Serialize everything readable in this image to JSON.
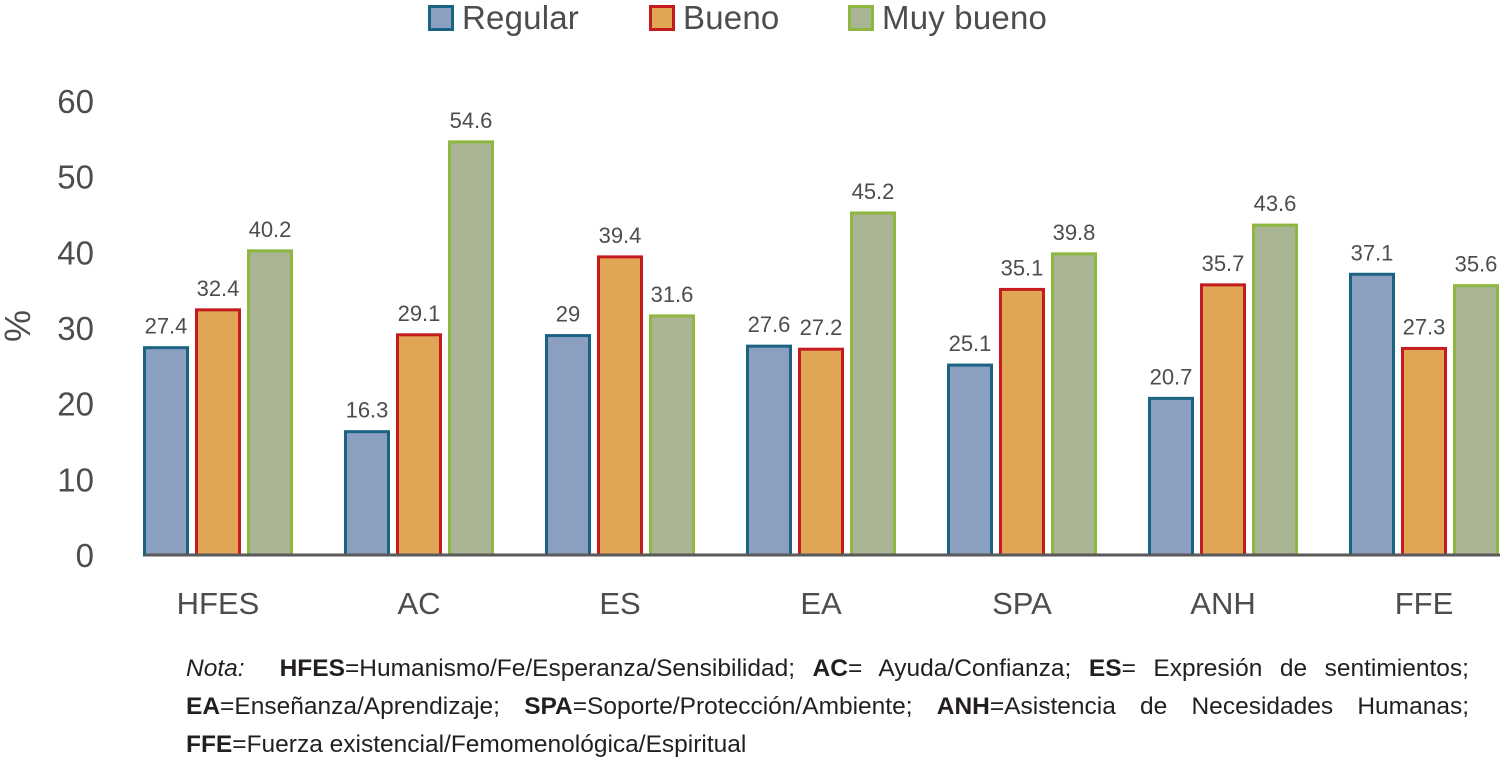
{
  "chart_data": {
    "type": "bar",
    "title": "",
    "xlabel": "",
    "ylabel": "%",
    "ylim": [
      0,
      60
    ],
    "yticks": [
      0,
      10,
      20,
      30,
      40,
      50,
      60
    ],
    "grid": false,
    "legend_position": "top-center",
    "categories": [
      "HFES",
      "AC",
      "ES",
      "EA",
      "SPA",
      "ANH",
      "FFE"
    ],
    "series": [
      {
        "name": "Regular",
        "fill": "#8b9fc0",
        "stroke": "#1a6383",
        "values": [
          27.4,
          16.3,
          29,
          27.6,
          25.1,
          20.7,
          37.1
        ],
        "labels": [
          "27.4",
          "16.3",
          "29",
          "27.6",
          "25.1",
          "20.7",
          "37.1"
        ]
      },
      {
        "name": "Bueno",
        "fill": "#e0a656",
        "stroke": "#c41b1f",
        "values": [
          32.4,
          29.1,
          39.4,
          27.2,
          35.1,
          35.7,
          27.3
        ],
        "labels": [
          "32.4",
          "29.1",
          "39.4",
          "27.2",
          "35.1",
          "35.7",
          "27.3"
        ]
      },
      {
        "name": "Muy bueno",
        "fill": "#a8b494",
        "stroke": "#8db73f",
        "values": [
          40.2,
          54.6,
          31.6,
          45.2,
          39.8,
          43.6,
          35.6
        ],
        "labels": [
          "40.2",
          "54.6",
          "31.6",
          "45.2",
          "39.8",
          "43.6",
          "35.6"
        ]
      }
    ]
  },
  "note": {
    "prefix": "Nota:",
    "entries": [
      {
        "abbr": "HFES",
        "sep": "=",
        "text": "Humanismo/Fe/Esperanza/Sensibilidad;"
      },
      {
        "abbr": "AC",
        "sep": "= ",
        "text": "Ayuda/Confianza;"
      },
      {
        "abbr": "ES",
        "sep": "= ",
        "text": "Expresión de sentimientos;"
      },
      {
        "abbr": "EA",
        "sep": "=",
        "text": "Enseñanza/Aprendizaje;"
      },
      {
        "abbr": "SPA",
        "sep": "=",
        "text": "Soporte/Protección/Ambiente;"
      },
      {
        "abbr": "ANH",
        "sep": "=",
        "text": "Asistencia de Necesidades Humanas;"
      },
      {
        "abbr": "FFE",
        "sep": "=",
        "text": "Fuerza existencial/Femomenológica/Espiritual"
      }
    ]
  },
  "colors": {
    "axis": "#5a5a5a",
    "text": "#4d4d4d",
    "note_text": "#231f20"
  }
}
